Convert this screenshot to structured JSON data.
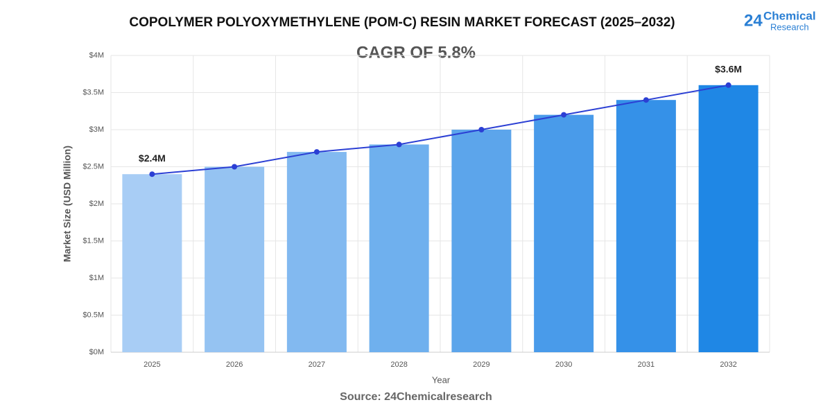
{
  "chart_data": {
    "type": "bar",
    "title": "COPOLYMER POLYOXYMETHYLENE (POM-C) RESIN MARKET FORECAST (2025–2032)",
    "subtitle": "CAGR OF 5.8%",
    "logo": {
      "number": "24",
      "name": "Chemical",
      "tagline": "Research"
    },
    "x_label": "Year",
    "y_label": "Market Size (USD Million)",
    "source": "Source: 24Chemicalresearch",
    "categories": [
      "2025",
      "2026",
      "2027",
      "2028",
      "2029",
      "2030",
      "2031",
      "2032"
    ],
    "values": [
      2.4,
      2.5,
      2.7,
      2.8,
      3.0,
      3.2,
      3.4,
      3.6
    ],
    "value_labels": [
      "$2.4M",
      null,
      null,
      null,
      null,
      null,
      null,
      "$3.6M"
    ],
    "colors": [
      "#a8cdf5",
      "#95c3f2",
      "#82b9f0",
      "#6fb0ee",
      "#5ca5eb",
      "#499bea",
      "#3591e8",
      "#1f87e5"
    ],
    "line_color": "#2b3fd4",
    "ylim": [
      0,
      4
    ],
    "yticks": [
      {
        "value": 0,
        "label": "$0M"
      },
      {
        "value": 0.5,
        "label": "$0.5M"
      },
      {
        "value": 1,
        "label": "$1M"
      },
      {
        "value": 1.5,
        "label": "$1.5M"
      },
      {
        "value": 2,
        "label": "$2M"
      },
      {
        "value": 2.5,
        "label": "$2.5M"
      },
      {
        "value": 3,
        "label": "$3M"
      },
      {
        "value": 3.5,
        "label": "$3.5M"
      },
      {
        "value": 4,
        "label": "$4M"
      }
    ],
    "grid": true
  }
}
